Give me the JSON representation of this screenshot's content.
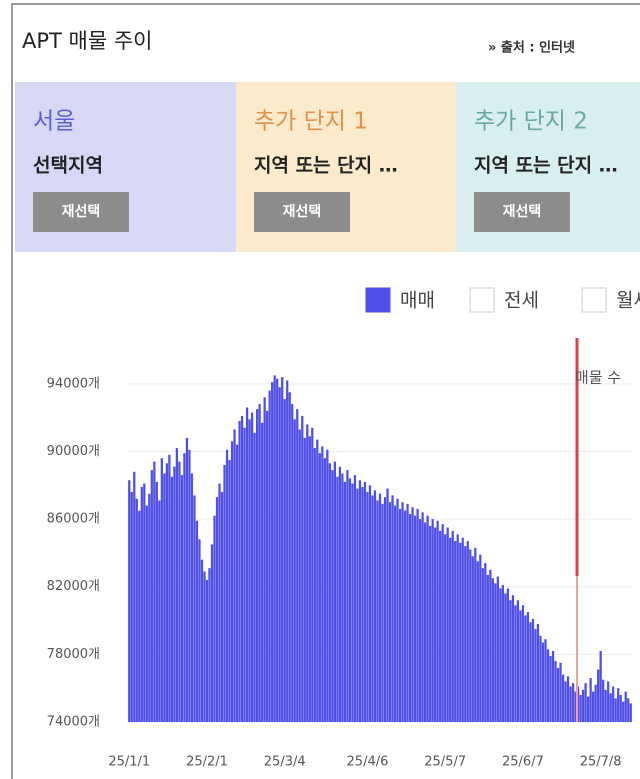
{
  "header": {
    "title": "APT 매물 주이",
    "source": "» 출처 : 인터넷"
  },
  "cards": [
    {
      "title": "서울",
      "subtitle": "선택지역",
      "button": "재선택"
    },
    {
      "title": "추가 단지 1",
      "subtitle": "지역 또는 단지 …",
      "button": "재선택"
    },
    {
      "title": "추가 단지 2",
      "subtitle": "지역 또는 단지 …",
      "button": "재선택"
    }
  ],
  "chart_data": {
    "type": "bar",
    "legend": [
      "매매",
      "전세",
      "월세"
    ],
    "annotation": "매물 수",
    "categories": [
      "25/1/1",
      null,
      null,
      null,
      null,
      null,
      null,
      null,
      null,
      null,
      null,
      null,
      null,
      null,
      null,
      null,
      null,
      null,
      null,
      null,
      null,
      null,
      null,
      null,
      null,
      null,
      null,
      null,
      null,
      null,
      null,
      "25/2/1",
      null,
      null,
      null,
      null,
      null,
      null,
      null,
      null,
      null,
      null,
      null,
      null,
      null,
      null,
      null,
      null,
      null,
      null,
      null,
      null,
      null,
      null,
      null,
      null,
      null,
      null,
      null,
      null,
      null,
      null,
      "25/3/4",
      null,
      null,
      null,
      null,
      null,
      null,
      null,
      null,
      null,
      null,
      null,
      null,
      null,
      null,
      null,
      null,
      null,
      null,
      null,
      null,
      null,
      null,
      null,
      null,
      null,
      null,
      null,
      null,
      null,
      null,
      null,
      null,
      "25/4/6",
      null,
      null,
      null,
      null,
      null,
      null,
      null,
      null,
      null,
      null,
      null,
      null,
      null,
      null,
      null,
      null,
      null,
      null,
      null,
      null,
      null,
      null,
      null,
      null,
      null,
      null,
      null,
      null,
      null,
      null,
      "25/5/7",
      null,
      null,
      null,
      null,
      null,
      null,
      null,
      null,
      null,
      null,
      null,
      null,
      null,
      null,
      null,
      null,
      null,
      null,
      null,
      null,
      null,
      null,
      null,
      null,
      null,
      null,
      null,
      null,
      null,
      null,
      "25/6/7",
      null,
      null,
      null,
      null,
      null,
      null,
      null,
      null,
      null,
      null,
      null,
      null,
      null,
      null,
      null,
      null,
      null,
      null,
      null,
      null,
      null,
      null,
      null,
      null,
      null,
      null,
      null,
      null,
      null,
      null,
      "25/7/8",
      null,
      null,
      null,
      null,
      null,
      null,
      null,
      null,
      null,
      null,
      null,
      null
    ],
    "series": [
      {
        "name": "매매",
        "color": "#4f4fe8",
        "values": [
          88300,
          87600,
          88800,
          87200,
          86500,
          87900,
          88100,
          86800,
          87500,
          88900,
          89400,
          88200,
          87100,
          89600,
          88700,
          89300,
          89800,
          88500,
          89100,
          90200,
          89400,
          88600,
          89900,
          90800,
          90100,
          88700,
          87400,
          85900,
          84800,
          83600,
          82900,
          82400,
          83100,
          84500,
          86200,
          87300,
          88100,
          87600,
          89200,
          90100,
          89500,
          90600,
          91300,
          90400,
          91800,
          92100,
          91400,
          92600,
          91900,
          92300,
          91100,
          92500,
          92800,
          91700,
          93200,
          92400,
          93600,
          94100,
          94500,
          94300,
          93800,
          94400,
          93100,
          94200,
          93500,
          92800,
          91900,
          92500,
          91300,
          92100,
          90800,
          91600,
          90900,
          91400,
          90200,
          90700,
          89900,
          90300,
          89600,
          90100,
          89300,
          88900,
          89400,
          88500,
          89100,
          88700,
          88200,
          88900,
          88400,
          88100,
          88600,
          87800,
          88300,
          87900,
          88200,
          87600,
          88000,
          87400,
          87700,
          87100,
          87500,
          86900,
          87300,
          87800,
          87000,
          87400,
          86800,
          87200,
          86600,
          87000,
          86500,
          86900,
          86300,
          86700,
          86200,
          86600,
          86000,
          86400,
          85800,
          86200,
          85600,
          86000,
          85500,
          85900,
          85300,
          85700,
          85100,
          85500,
          84900,
          85300,
          84700,
          85100,
          84600,
          84900,
          84400,
          84700,
          84200,
          83800,
          84300,
          83500,
          83900,
          83100,
          83400,
          82700,
          83000,
          82500,
          82200,
          82600,
          81900,
          82100,
          81600,
          81900,
          81200,
          81500,
          80900,
          81200,
          80600,
          80900,
          80300,
          80500,
          79900,
          80100,
          79500,
          79800,
          79100,
          78700,
          78900,
          78300,
          77900,
          78200,
          77600,
          77200,
          77500,
          76800,
          76400,
          76700,
          76100,
          76300,
          75800,
          76100,
          75600,
          75900,
          76300,
          75500,
          76600,
          75800,
          76200,
          77100,
          78200,
          76500,
          75900,
          76400,
          75700,
          76100,
          75400,
          76000,
          75600,
          75200,
          75800,
          75400,
          75100
        ]
      }
    ],
    "ylim": [
      74000,
      96000
    ],
    "yticks": [
      {
        "value": 74000,
        "label": "74000개"
      },
      {
        "value": 78000,
        "label": "78000개"
      },
      {
        "value": 82000,
        "label": "82000개"
      },
      {
        "value": 86000,
        "label": "86000개"
      },
      {
        "value": 90000,
        "label": "90000개"
      },
      {
        "value": 94000,
        "label": "94000개"
      }
    ],
    "grid": true
  }
}
